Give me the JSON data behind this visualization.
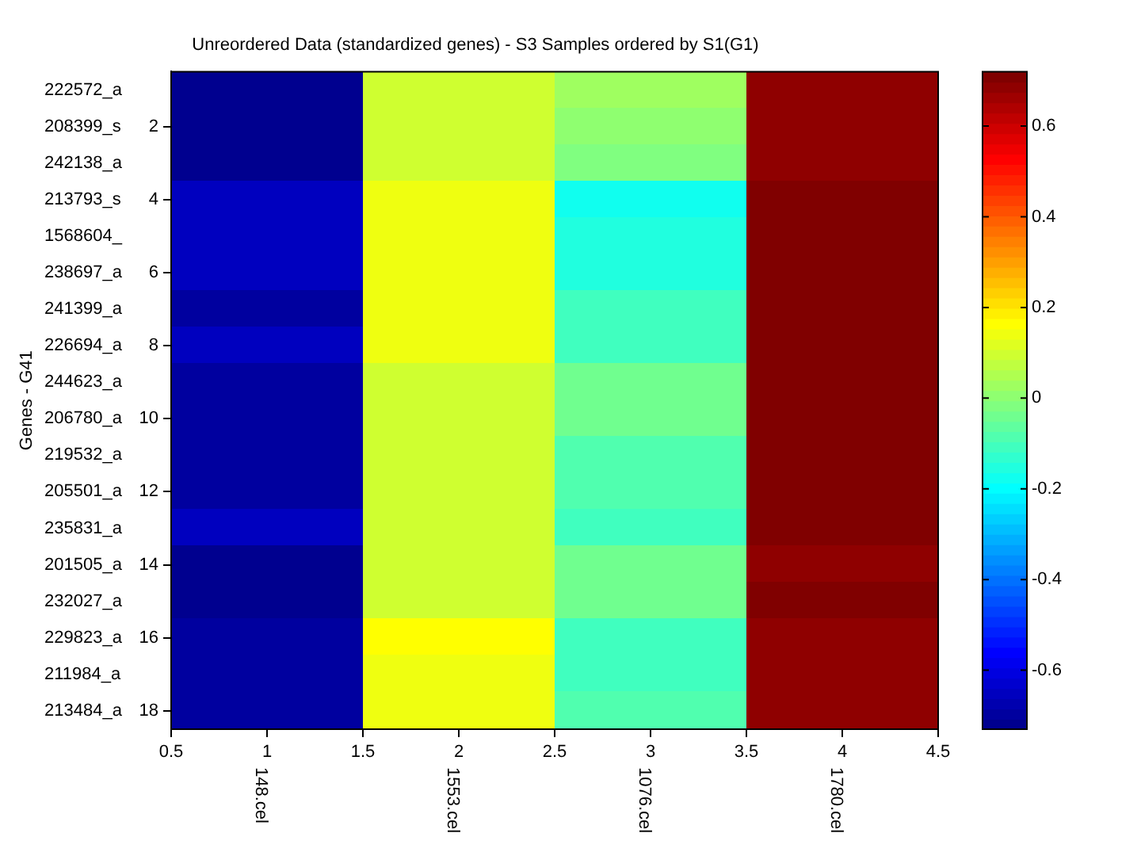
{
  "chart_data": {
    "type": "heatmap",
    "title": "Unreordered Data (standardized genes) - S3 Samples ordered by S1(G1)",
    "ylabel": "Genes - G41",
    "categories": [
      "148.cel",
      "1553.cel",
      "1076.cel",
      "1780.cel"
    ],
    "y_categories": [
      "222572_a",
      "208399_s",
      "242138_a",
      "213793_s",
      "1568604_",
      "238697_a",
      "241399_a",
      "226694_a",
      "244623_a",
      "206780_a",
      "219532_a",
      "205501_a",
      "235831_a",
      "201505_a",
      "232027_a",
      "229823_a",
      "211984_a",
      "213484_a"
    ],
    "cells": [
      [
        -0.71,
        0.086,
        0.018,
        0.69
      ],
      [
        -0.71,
        0.108,
        -0.005,
        0.69
      ],
      [
        -0.71,
        0.108,
        -0.027,
        0.69
      ],
      [
        -0.64,
        0.153,
        -0.164,
        0.72
      ],
      [
        -0.66,
        0.131,
        -0.141,
        0.72
      ],
      [
        -0.66,
        0.131,
        -0.141,
        0.72
      ],
      [
        -0.69,
        0.153,
        -0.118,
        0.72
      ],
      [
        -0.66,
        0.131,
        -0.118,
        0.72
      ],
      [
        -0.69,
        0.086,
        -0.049,
        0.72
      ],
      [
        -0.69,
        0.086,
        -0.049,
        0.72
      ],
      [
        -0.69,
        0.108,
        -0.073,
        0.72
      ],
      [
        -0.69,
        0.108,
        -0.073,
        0.72
      ],
      [
        -0.66,
        0.108,
        -0.118,
        0.72
      ],
      [
        -0.71,
        0.108,
        -0.049,
        0.69
      ],
      [
        -0.71,
        0.086,
        -0.049,
        0.72
      ],
      [
        -0.69,
        0.176,
        -0.096,
        0.69
      ],
      [
        -0.69,
        0.153,
        -0.096,
        0.69
      ],
      [
        -0.69,
        0.131,
        -0.073,
        0.69
      ]
    ],
    "clim": [
      -0.73,
      0.72
    ],
    "cticks": [
      -0.6,
      -0.4,
      -0.2,
      0,
      0.2,
      0.4,
      0.6
    ],
    "x2lim": [
      0.5,
      4.5
    ],
    "x2ticks": [
      0.5,
      1,
      1.5,
      2,
      2.5,
      3,
      3.5,
      4,
      4.5
    ],
    "y2lim": [
      18.5,
      0.5
    ],
    "y2ticks": [
      2,
      4,
      6,
      8,
      10,
      12,
      14,
      16,
      18
    ]
  }
}
